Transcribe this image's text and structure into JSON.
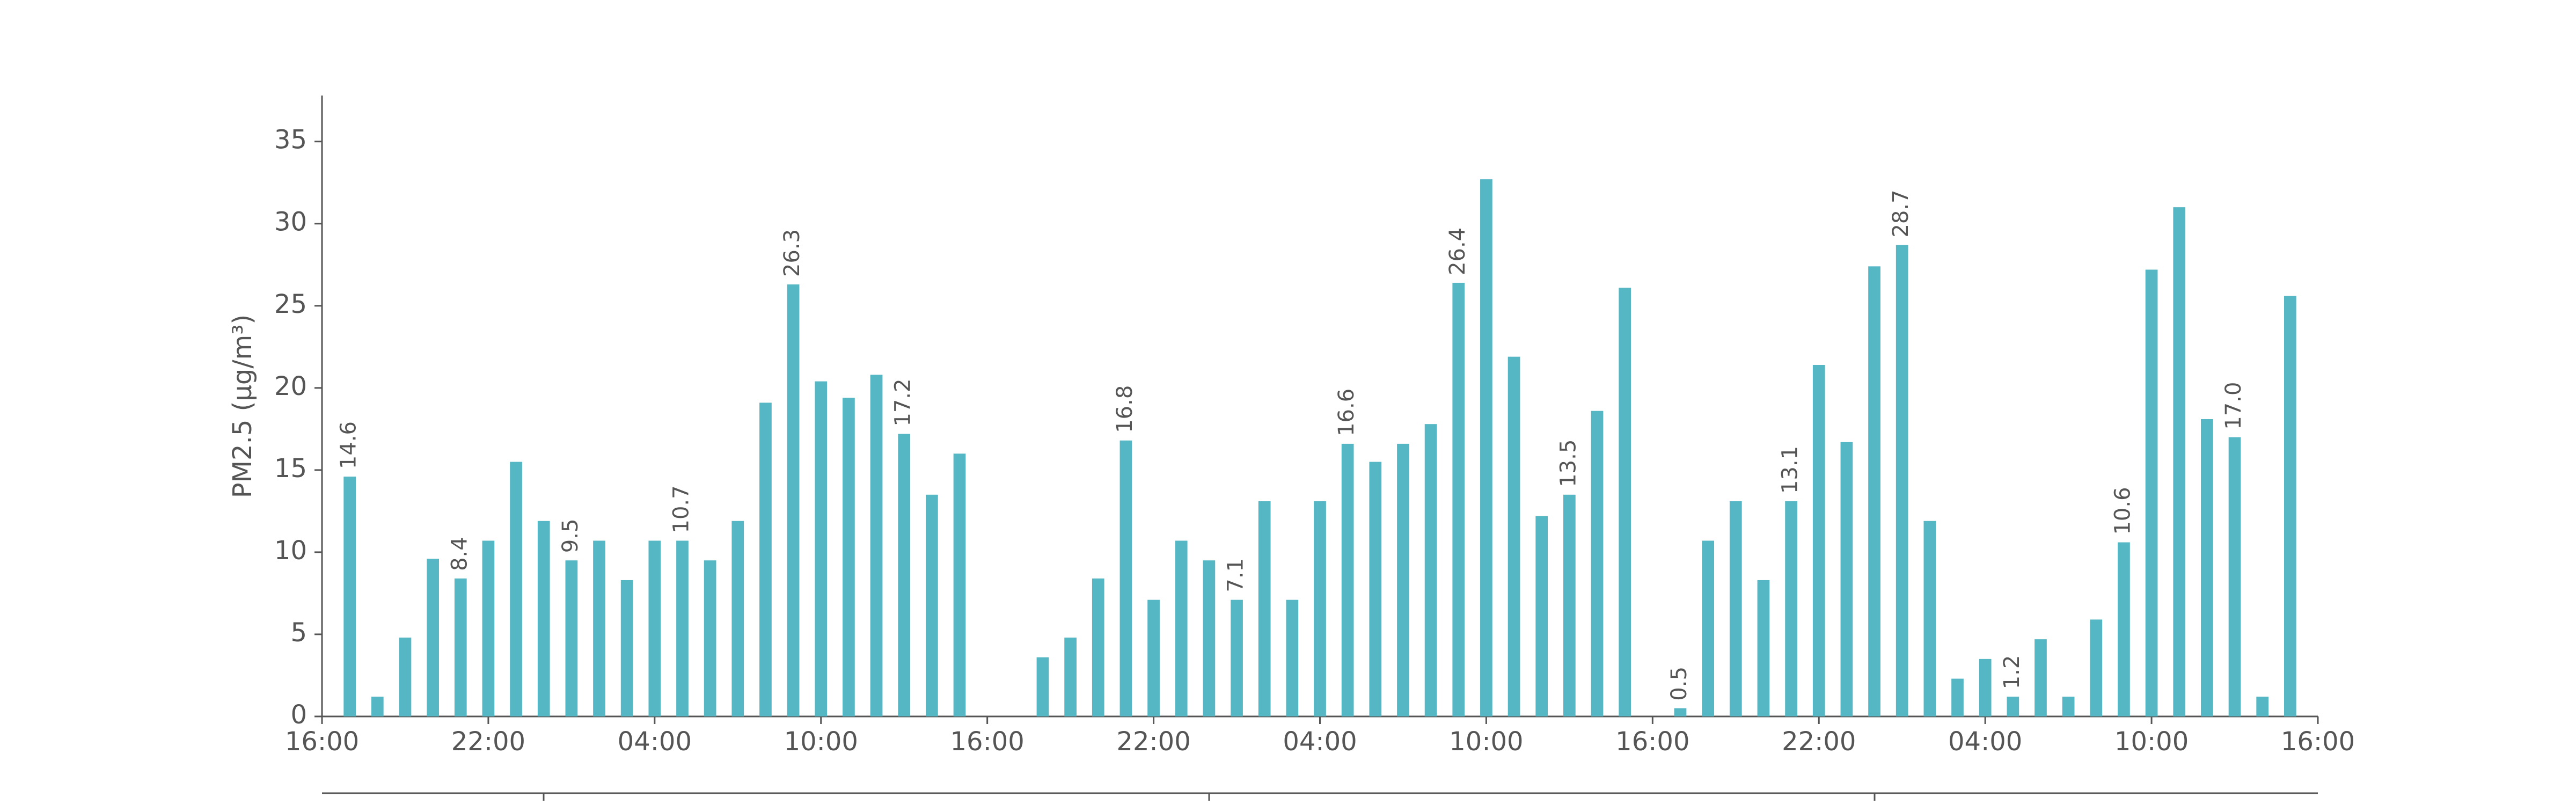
{
  "chart_data": {
    "type": "bar",
    "y_label": "PM2.5 (μg/m³)",
    "color": "#56b7c4",
    "x": [
      1,
      2,
      3,
      4,
      5,
      6,
      7,
      8,
      9,
      10,
      11,
      12,
      13,
      14,
      15,
      16,
      17,
      18,
      19,
      20,
      21,
      22,
      23,
      26,
      27,
      28,
      29,
      30,
      31,
      32,
      33,
      34,
      35,
      36,
      37,
      38,
      39,
      40,
      41,
      42,
      43,
      44,
      45,
      46,
      47,
      49,
      50,
      51,
      52,
      53,
      54,
      55,
      56,
      57,
      58,
      59,
      60,
      61,
      62,
      63,
      64,
      65,
      66,
      67,
      68,
      69,
      70,
      71
    ],
    "values": [
      14.6,
      1.2,
      4.8,
      9.6,
      8.4,
      10.7,
      15.5,
      11.9,
      9.5,
      10.7,
      8.3,
      10.7,
      10.7,
      9.5,
      11.9,
      19.1,
      26.3,
      20.4,
      19.4,
      20.8,
      17.2,
      13.5,
      16.0,
      3.6,
      4.8,
      8.4,
      16.8,
      7.1,
      10.7,
      9.5,
      7.1,
      13.1,
      7.1,
      13.1,
      16.6,
      15.5,
      16.6,
      17.8,
      26.4,
      32.7,
      21.9,
      12.2,
      13.5,
      18.6,
      26.1,
      0.5,
      10.7,
      13.1,
      8.3,
      13.1,
      21.4,
      16.7,
      27.4,
      28.7,
      11.9,
      2.3,
      3.5,
      1.2,
      4.7,
      1.2,
      5.9,
      10.6,
      27.2,
      31.0,
      18.1,
      17.0,
      1.2,
      25.6
    ],
    "value_labels": [
      "14.6",
      null,
      null,
      null,
      "8.4",
      null,
      null,
      null,
      "9.5",
      null,
      null,
      null,
      "10.7",
      null,
      null,
      null,
      "26.3",
      null,
      null,
      null,
      "17.2",
      null,
      null,
      null,
      null,
      null,
      "16.8",
      null,
      null,
      null,
      "7.1",
      null,
      null,
      null,
      "16.6",
      null,
      null,
      null,
      "26.4",
      null,
      null,
      null,
      "13.5",
      null,
      null,
      "0.5",
      null,
      null,
      null,
      "13.1",
      null,
      null,
      null,
      "28.7",
      null,
      null,
      null,
      "1.2",
      null,
      null,
      null,
      "10.6",
      null,
      null,
      null,
      "17.0",
      null,
      null
    ],
    "xlim": [
      0,
      72
    ],
    "xticks": [
      {
        "value": 0,
        "label": "16:00"
      },
      {
        "value": 6,
        "label": "22:00"
      },
      {
        "value": 12,
        "label": "04:00"
      },
      {
        "value": 18,
        "label": "10:00"
      },
      {
        "value": 24,
        "label": "16:00"
      },
      {
        "value": 30,
        "label": "22:00"
      },
      {
        "value": 36,
        "label": "04:00"
      },
      {
        "value": 42,
        "label": "10:00"
      },
      {
        "value": 48,
        "label": "16:00"
      },
      {
        "value": 54,
        "label": "22:00"
      },
      {
        "value": 60,
        "label": "04:00"
      },
      {
        "value": 66,
        "label": "10:00"
      },
      {
        "value": 72,
        "label": "16:00"
      }
    ],
    "ylim": [
      0,
      37.8
    ],
    "yticks": [
      0,
      5,
      10,
      15,
      20,
      25,
      30,
      35
    ]
  }
}
